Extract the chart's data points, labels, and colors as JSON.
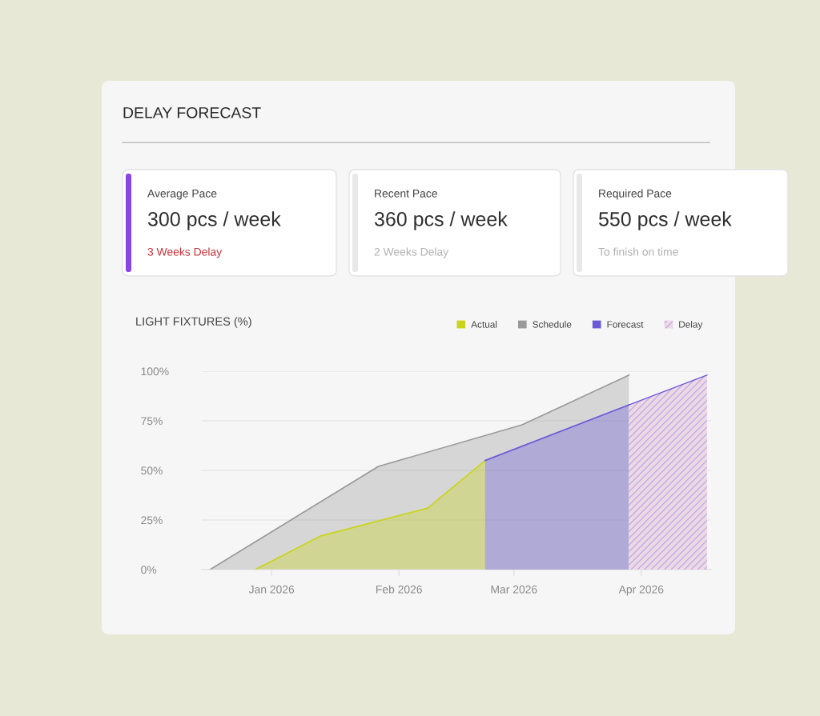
{
  "chart_data": [
    {
      "type": "other",
      "title": "DELAY FORECAST"
    },
    {
      "type": "other",
      "title": "Average Pace",
      "annotations": [
        "300 pcs / week",
        "3 Weeks Delay"
      ],
      "color": "#8a44e6"
    },
    {
      "type": "other",
      "title": "Recent Pace",
      "annotations": [
        "360 pcs / week",
        "2 Weeks Delay"
      ],
      "color": "#e8e8e8"
    },
    {
      "type": "other",
      "title": "Required Pace",
      "annotations": [
        "550 pcs / week",
        "To finish on time"
      ],
      "color": "#e8e8e8"
    },
    {
      "type": "area",
      "title": "LIGHT FIXTURES (%)",
      "series": [
        {
          "name": "Actual",
          "color": "#c9d41a",
          "x": [
            "2025-12-28",
            "2026-01-13",
            "2026-02-08",
            "2026-02-22"
          ],
          "values": [
            0,
            17,
            31,
            55
          ]
        },
        {
          "name": "Schedule",
          "color": "#9a9a9a",
          "x": [
            "2025-12-17",
            "2026-01-27",
            "2026-03-03",
            "2026-03-29"
          ],
          "values": [
            0,
            52,
            73,
            98
          ]
        },
        {
          "name": "Forecast",
          "color": "#6a5ad8",
          "x": [
            "2026-02-22",
            "2026-03-29"
          ],
          "values": [
            55,
            83
          ]
        },
        {
          "name": "Delay",
          "color": "#f0d8e2",
          "x": [
            "2026-03-29",
            "2026-04-17"
          ],
          "values": [
            83,
            98
          ]
        }
      ],
      "xlim": [
        "2025-12-15",
        "2026-04-18"
      ],
      "xticks": [
        {
          "value": "2026-01-01",
          "label": "Jan 2026"
        },
        {
          "value": "2026-02-01",
          "label": "Feb 2026"
        },
        {
          "value": "2026-03-01",
          "label": "Mar 2026"
        },
        {
          "value": "2026-04-01",
          "label": "Apr 2026"
        }
      ],
      "ylim": [
        0,
        100
      ],
      "yticks": [
        {
          "value": 0,
          "label": "0%"
        },
        {
          "value": 25,
          "label": "25%"
        },
        {
          "value": 50,
          "label": "50%"
        },
        {
          "value": 75,
          "label": "75%"
        },
        {
          "value": 100,
          "label": "100%"
        }
      ],
      "grid": "y",
      "legend": "top right"
    }
  ]
}
